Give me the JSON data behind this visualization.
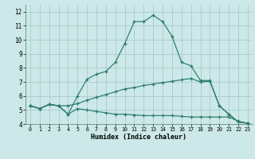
{
  "xlabel": "Humidex (Indice chaleur)",
  "xlim": [
    -0.5,
    23.5
  ],
  "ylim": [
    4,
    12.5
  ],
  "xtick_labels": [
    "0",
    "1",
    "2",
    "3",
    "4",
    "5",
    "6",
    "7",
    "8",
    "9",
    "10",
    "11",
    "12",
    "13",
    "14",
    "15",
    "16",
    "17",
    "18",
    "19",
    "20",
    "21",
    "22",
    "23"
  ],
  "xticks": [
    0,
    1,
    2,
    3,
    4,
    5,
    6,
    7,
    8,
    9,
    10,
    11,
    12,
    13,
    14,
    15,
    16,
    17,
    18,
    19,
    20,
    21,
    22,
    23
  ],
  "yticks": [
    4,
    5,
    6,
    7,
    8,
    9,
    10,
    11,
    12
  ],
  "bg_color": "#cce8e8",
  "grid_color": "#aacccc",
  "line_color": "#2a7a6a",
  "curve1_x": [
    0,
    1,
    2,
    3,
    4,
    5,
    6,
    7,
    8,
    9,
    10,
    11,
    12,
    13,
    14,
    15,
    16,
    17,
    18,
    19,
    20,
    21,
    22,
    23
  ],
  "curve1_y": [
    5.3,
    5.1,
    5.4,
    5.3,
    4.7,
    6.0,
    7.2,
    7.55,
    7.75,
    8.4,
    9.75,
    11.3,
    11.3,
    11.75,
    11.3,
    10.25,
    8.4,
    8.15,
    7.1,
    7.1,
    5.3,
    4.7,
    4.15,
    4.05
  ],
  "curve2_x": [
    0,
    1,
    2,
    3,
    4,
    5,
    6,
    7,
    8,
    9,
    10,
    11,
    12,
    13,
    14,
    15,
    16,
    17,
    18,
    19,
    20,
    21,
    22,
    23
  ],
  "curve2_y": [
    5.3,
    5.1,
    5.4,
    5.3,
    5.3,
    5.45,
    5.7,
    5.9,
    6.1,
    6.3,
    6.5,
    6.6,
    6.75,
    6.85,
    6.95,
    7.05,
    7.15,
    7.25,
    7.0,
    7.05,
    5.3,
    4.7,
    4.15,
    4.05
  ],
  "curve3_x": [
    0,
    1,
    2,
    3,
    4,
    5,
    6,
    7,
    8,
    9,
    10,
    11,
    12,
    13,
    14,
    15,
    16,
    17,
    18,
    19,
    20,
    21,
    22,
    23
  ],
  "curve3_y": [
    5.3,
    5.1,
    5.4,
    5.3,
    4.7,
    5.1,
    5.0,
    4.9,
    4.8,
    4.7,
    4.7,
    4.65,
    4.6,
    4.6,
    4.6,
    4.6,
    4.55,
    4.5,
    4.5,
    4.5,
    4.5,
    4.5,
    4.2,
    4.05
  ]
}
